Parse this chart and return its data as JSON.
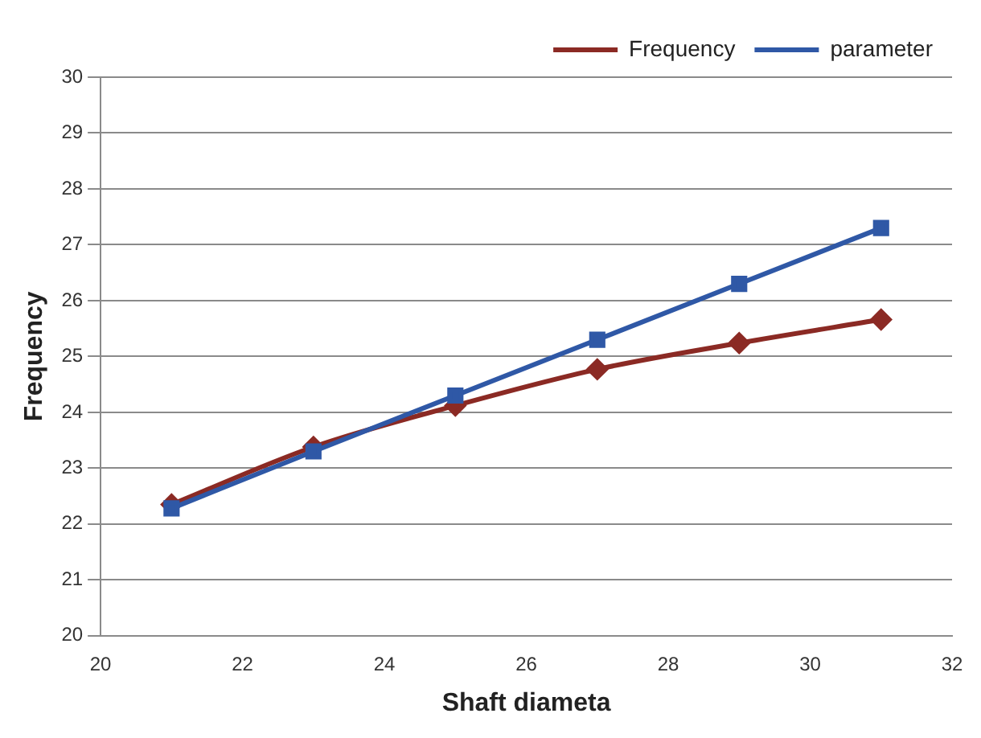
{
  "chart_data": {
    "type": "line",
    "xlabel": "Shaft diameta",
    "ylabel": "Frequency",
    "x": [
      21,
      23,
      25,
      27,
      29,
      31
    ],
    "series": [
      {
        "name": "Frequency",
        "color": "#8b2a24",
        "marker": "diamond",
        "values": [
          22.35,
          23.38,
          24.12,
          24.77,
          25.24,
          25.66
        ]
      },
      {
        "name": "parameter",
        "color": "#2f58a6",
        "marker": "square",
        "values": [
          22.28,
          23.3,
          24.3,
          25.3,
          26.3,
          27.3
        ]
      }
    ],
    "xlim": [
      20,
      32
    ],
    "xticks": [
      20,
      22,
      24,
      26,
      28,
      30,
      32
    ],
    "ylim": [
      20,
      30
    ],
    "yticks": [
      20,
      21,
      22,
      23,
      24,
      25,
      26,
      27,
      28,
      29,
      30
    ],
    "grid": "y",
    "legend": "top right"
  }
}
